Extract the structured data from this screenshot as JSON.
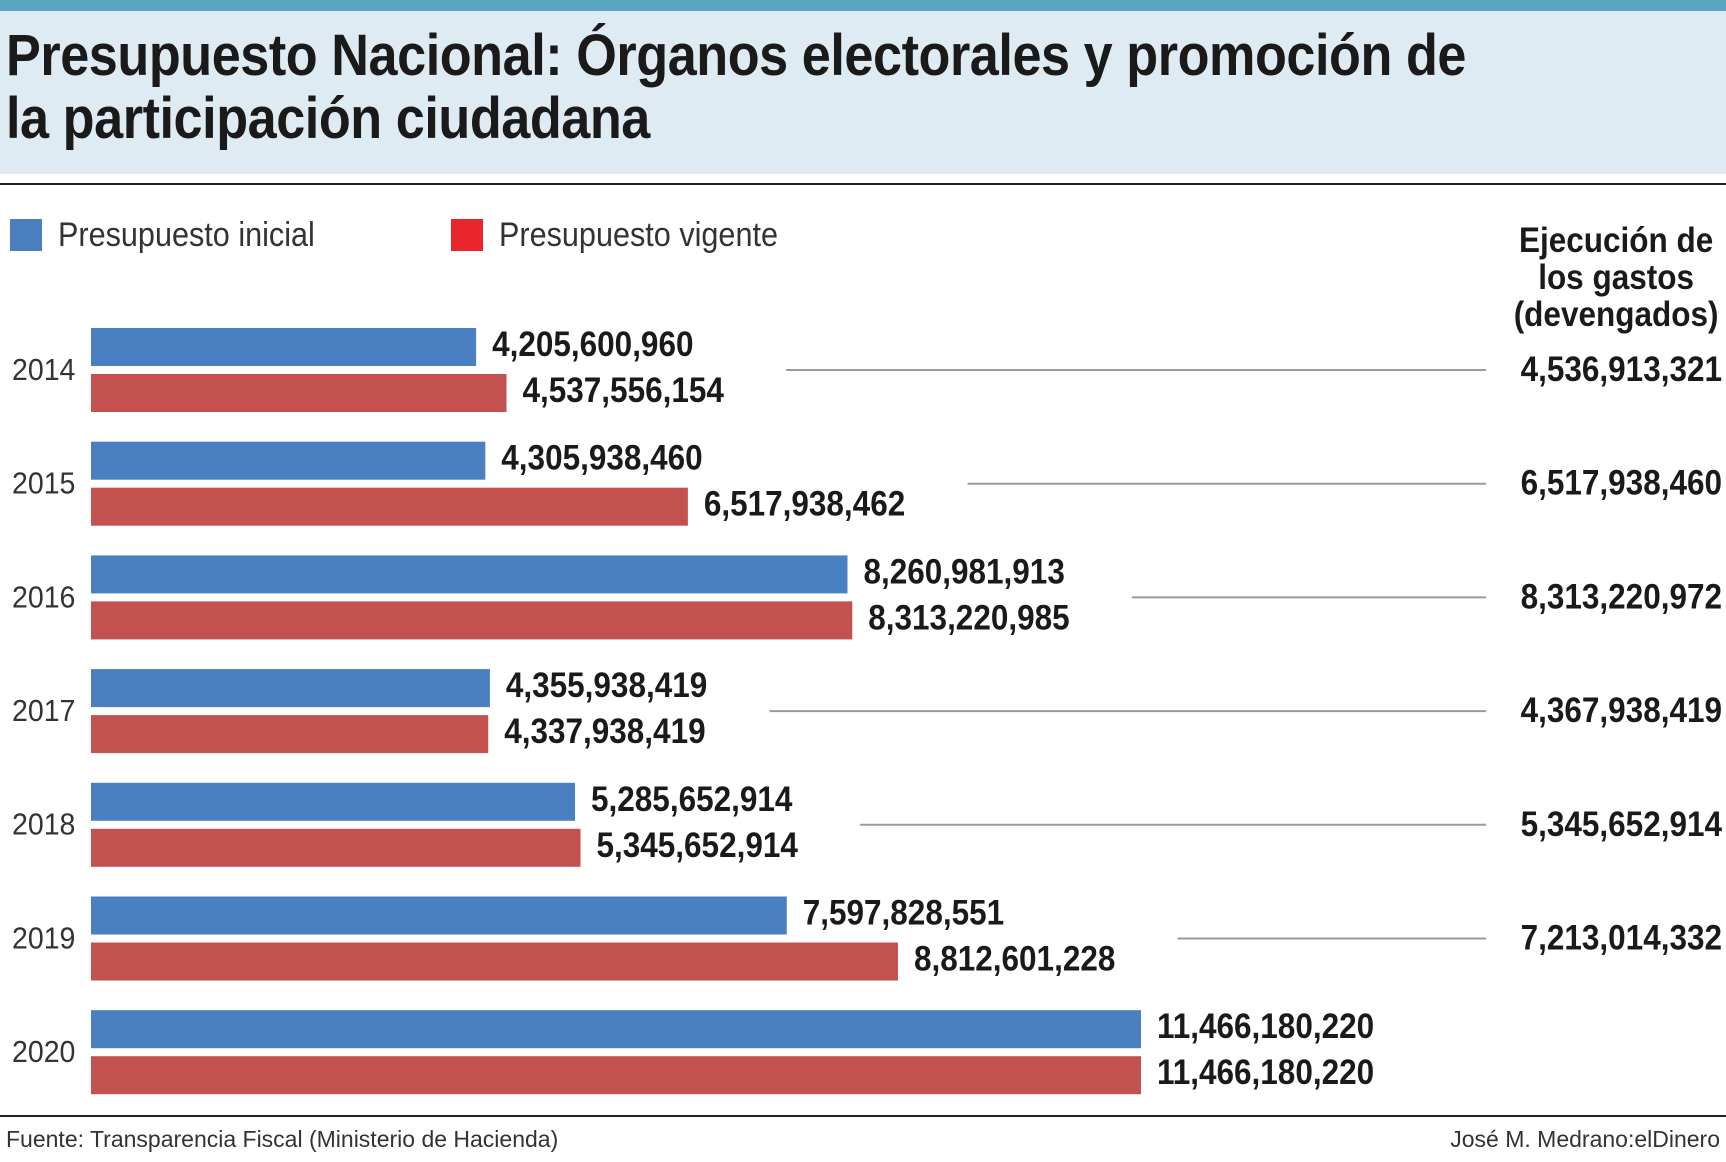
{
  "title": "Presupuesto Nacional: Órganos electorales y promoción de la participación ciudadana",
  "legend": [
    {
      "label": "Presupuesto inicial",
      "color": "#4a7fc1"
    },
    {
      "label": "Presupuesto vigente",
      "color": "#e8262b"
    }
  ],
  "exec_header": "Ejecución de los gastos (devengados)",
  "footer": {
    "source": "Fuente: Transparencia Fiscal (Ministerio de Hacienda)",
    "credit": "José M. Medrano:elDinero"
  },
  "colors": {
    "bar_initial": "#4a7fc1",
    "bar_vigente": "#c25150",
    "leader_line": "#9a9a9a",
    "top_strip": "#5aa5c4",
    "title_band": "#deebf2"
  },
  "chart_data": {
    "type": "bar",
    "orientation": "horizontal",
    "categories": [
      "2014",
      "2015",
      "2016",
      "2017",
      "2018",
      "2019",
      "2020"
    ],
    "series": [
      {
        "name": "Presupuesto inicial",
        "values": [
          4205600960,
          4305938460,
          8260981913,
          4355938419,
          5285652914,
          7597828551,
          11466180220
        ],
        "labels": [
          "4,205,600,960",
          "4,305,938,460",
          "8,260,981,913",
          "4,355,938,419",
          "5,285,652,914",
          "7,597,828,551",
          "11,466,180,220"
        ]
      },
      {
        "name": "Presupuesto vigente",
        "values": [
          4537556154,
          6517938462,
          8313220985,
          4337938419,
          5345652914,
          8812601228,
          11466180220
        ],
        "labels": [
          "4,537,556,154",
          "6,517,938,462",
          "8,313,220,985",
          "4,337,938,419",
          "5,345,652,914",
          "8,812,601,228",
          "11,466,180,220"
        ]
      }
    ],
    "execution": {
      "values": [
        4536913321,
        6517938460,
        8313220972,
        4367938419,
        5345652914,
        7213014332,
        null
      ],
      "labels": [
        "4,536,913,321",
        "6,517,938,460",
        "8,313,220,972",
        "4,367,938,419",
        "5,345,652,914",
        "7,213,014,332",
        ""
      ]
    }
  }
}
